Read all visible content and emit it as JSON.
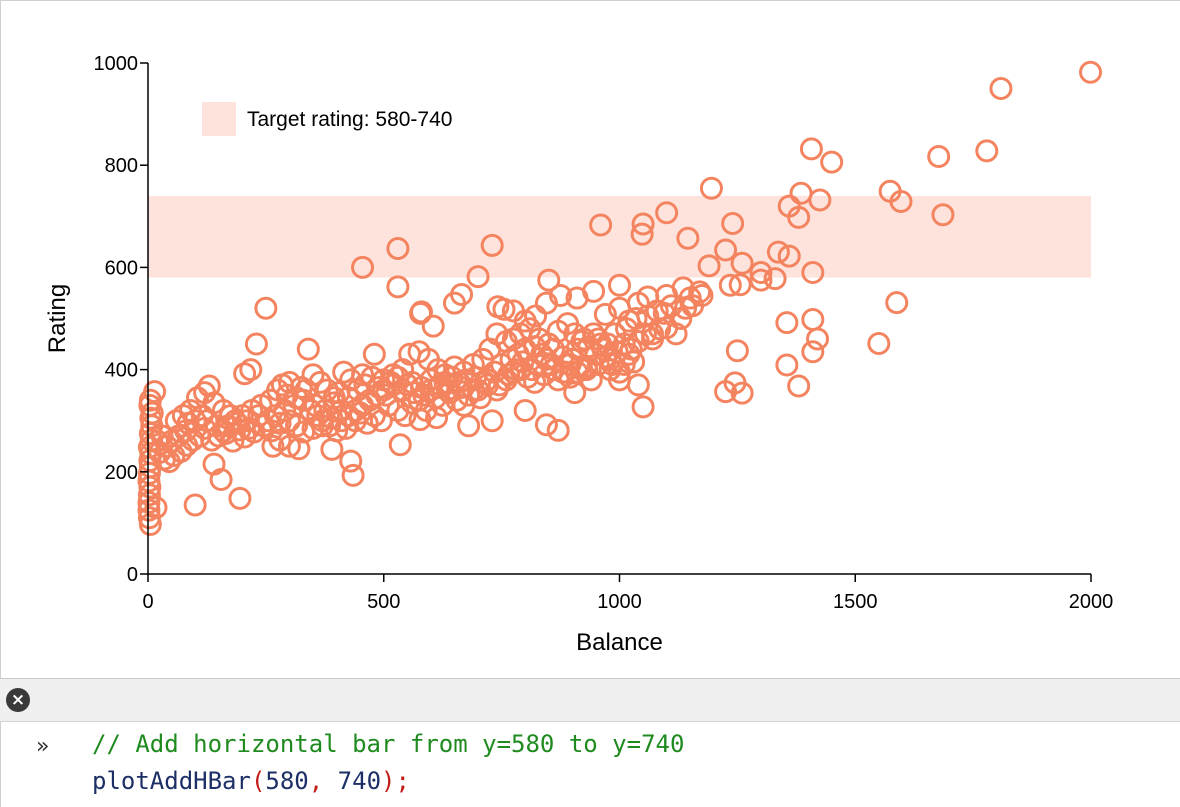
{
  "chart_data": {
    "type": "scatter",
    "xlabel": "Balance",
    "ylabel": "Rating",
    "xlim": [
      0,
      2000
    ],
    "ylim": [
      0,
      1000
    ],
    "xticks": [
      0,
      500,
      1000,
      1500,
      2000
    ],
    "yticks": [
      0,
      200,
      400,
      600,
      800,
      1000
    ],
    "grid": false,
    "marker_color": "#f4845f",
    "hbar": {
      "from": 580,
      "to": 740,
      "color": "#fde3dc",
      "legend": "Target rating: 580-740",
      "legend_position": "top-left"
    },
    "points": [
      [
        1999,
        982
      ],
      [
        1809,
        950
      ],
      [
        1779,
        828
      ],
      [
        1677,
        817
      ],
      [
        1686,
        703
      ],
      [
        1574,
        749
      ],
      [
        1597,
        729
      ],
      [
        1588,
        531
      ],
      [
        1550,
        451
      ],
      [
        1407,
        832
      ],
      [
        1450,
        806
      ],
      [
        1195,
        755
      ],
      [
        1385,
        745
      ],
      [
        1425,
        732
      ],
      [
        1360,
        720
      ],
      [
        1380,
        698
      ],
      [
        1240,
        686
      ],
      [
        1100,
        707
      ],
      [
        1050,
        685
      ],
      [
        1048,
        665
      ],
      [
        1145,
        657
      ],
      [
        960,
        683
      ],
      [
        730,
        643
      ],
      [
        530,
        637
      ],
      [
        455,
        600
      ],
      [
        530,
        562
      ],
      [
        1225,
        634
      ],
      [
        1337,
        630
      ],
      [
        1360,
        622
      ],
      [
        1190,
        603
      ],
      [
        1260,
        608
      ],
      [
        1300,
        590
      ],
      [
        1330,
        578
      ],
      [
        1410,
        590
      ],
      [
        1235,
        565
      ],
      [
        1256,
        566
      ],
      [
        1300,
        575
      ],
      [
        1170,
        552
      ],
      [
        1135,
        560
      ],
      [
        1100,
        545
      ],
      [
        1000,
        565
      ],
      [
        1060,
        542
      ],
      [
        1040,
        530
      ],
      [
        1080,
        515
      ],
      [
        1110,
        525
      ],
      [
        1150,
        540
      ],
      [
        1130,
        500
      ],
      [
        1100,
        482
      ],
      [
        1070,
        470
      ],
      [
        1020,
        495
      ],
      [
        1000,
        520
      ],
      [
        970,
        508
      ],
      [
        945,
        553
      ],
      [
        910,
        540
      ],
      [
        850,
        575
      ],
      [
        875,
        545
      ],
      [
        845,
        530
      ],
      [
        822,
        505
      ],
      [
        800,
        495
      ],
      [
        775,
        515
      ],
      [
        755,
        518
      ],
      [
        742,
        523
      ],
      [
        700,
        582
      ],
      [
        665,
        547
      ],
      [
        650,
        530
      ],
      [
        580,
        513
      ],
      [
        578,
        510
      ],
      [
        605,
        485
      ],
      [
        1355,
        492
      ],
      [
        1410,
        498
      ],
      [
        1420,
        460
      ],
      [
        1410,
        435
      ],
      [
        1250,
        437
      ],
      [
        1355,
        409
      ],
      [
        1380,
        368
      ],
      [
        1225,
        357
      ],
      [
        1245,
        374
      ],
      [
        1260,
        354
      ],
      [
        1030,
        415
      ],
      [
        1010,
        410
      ],
      [
        1000,
        380
      ],
      [
        1040,
        370
      ],
      [
        1050,
        327
      ],
      [
        940,
        380
      ],
      [
        920,
        400
      ],
      [
        905,
        355
      ],
      [
        870,
        281
      ],
      [
        845,
        292
      ],
      [
        800,
        320
      ],
      [
        730,
        300
      ],
      [
        680,
        290
      ],
      [
        612,
        306
      ],
      [
        577,
        302
      ],
      [
        535,
        253
      ],
      [
        435,
        193
      ],
      [
        430,
        221
      ],
      [
        390,
        244
      ],
      [
        320,
        245
      ],
      [
        300,
        250
      ],
      [
        280,
        262
      ],
      [
        265,
        250
      ],
      [
        250,
        520
      ],
      [
        230,
        450
      ],
      [
        218,
        400
      ],
      [
        205,
        392
      ],
      [
        195,
        148
      ],
      [
        155,
        185
      ],
      [
        140,
        215
      ],
      [
        100,
        135
      ],
      [
        17,
        130
      ],
      [
        5,
        97
      ],
      [
        3,
        110
      ],
      [
        2,
        125
      ],
      [
        2,
        140
      ],
      [
        3,
        155
      ],
      [
        4,
        170
      ],
      [
        2,
        182
      ],
      [
        3,
        197
      ],
      [
        5,
        210
      ],
      [
        4,
        222
      ],
      [
        6,
        236
      ],
      [
        3,
        248
      ],
      [
        7,
        262
      ],
      [
        5,
        275
      ],
      [
        8,
        290
      ],
      [
        6,
        305
      ],
      [
        4,
        330
      ],
      [
        14,
        357
      ],
      [
        5,
        340
      ],
      [
        9,
        315
      ],
      [
        25,
        238
      ],
      [
        35,
        225
      ],
      [
        45,
        220
      ],
      [
        55,
        232
      ],
      [
        70,
        240
      ],
      [
        82,
        252
      ],
      [
        95,
        262
      ],
      [
        110,
        270
      ],
      [
        120,
        285
      ],
      [
        135,
        262
      ],
      [
        150,
        270
      ],
      [
        165,
        275
      ],
      [
        180,
        260
      ],
      [
        195,
        282
      ],
      [
        205,
        268
      ],
      [
        215,
        285
      ],
      [
        225,
        278
      ],
      [
        245,
        290
      ],
      [
        262,
        280
      ],
      [
        280,
        295
      ],
      [
        300,
        300
      ],
      [
        315,
        290
      ],
      [
        330,
        278
      ],
      [
        350,
        285
      ],
      [
        370,
        290
      ],
      [
        390,
        305
      ],
      [
        410,
        320
      ],
      [
        420,
        285
      ],
      [
        440,
        300
      ],
      [
        450,
        315
      ],
      [
        465,
        295
      ],
      [
        480,
        310
      ],
      [
        495,
        300
      ],
      [
        510,
        330
      ],
      [
        530,
        320
      ],
      [
        545,
        310
      ],
      [
        560,
        335
      ],
      [
        575,
        340
      ],
      [
        590,
        320
      ],
      [
        610,
        345
      ],
      [
        625,
        330
      ],
      [
        640,
        355
      ],
      [
        655,
        340
      ],
      [
        670,
        330
      ],
      [
        690,
        360
      ],
      [
        705,
        345
      ],
      [
        720,
        370
      ],
      [
        740,
        360
      ],
      [
        760,
        380
      ],
      [
        775,
        395
      ],
      [
        790,
        400
      ],
      [
        805,
        385
      ],
      [
        820,
        375
      ],
      [
        840,
        390
      ],
      [
        855,
        410
      ],
      [
        870,
        380
      ],
      [
        885,
        395
      ],
      [
        900,
        420
      ],
      [
        915,
        405
      ],
      [
        930,
        400
      ],
      [
        950,
        430
      ],
      [
        965,
        440
      ],
      [
        980,
        420
      ],
      [
        995,
        435
      ],
      [
        1010,
        450
      ],
      [
        1025,
        440
      ],
      [
        1040,
        455
      ],
      [
        1055,
        470
      ],
      [
        1070,
        460
      ],
      [
        1085,
        480
      ],
      [
        60,
        300
      ],
      [
        75,
        310
      ],
      [
        90,
        320
      ],
      [
        105,
        345
      ],
      [
        120,
        355
      ],
      [
        130,
        368
      ],
      [
        140,
        335
      ],
      [
        160,
        320
      ],
      [
        175,
        310
      ],
      [
        190,
        295
      ],
      [
        210,
        300
      ],
      [
        240,
        330
      ],
      [
        260,
        340
      ],
      [
        285,
        370
      ],
      [
        300,
        375
      ],
      [
        325,
        365
      ],
      [
        340,
        440
      ],
      [
        350,
        390
      ],
      [
        365,
        375
      ],
      [
        380,
        360
      ],
      [
        395,
        345
      ],
      [
        415,
        395
      ],
      [
        430,
        380
      ],
      [
        455,
        390
      ],
      [
        480,
        430
      ],
      [
        500,
        380
      ],
      [
        520,
        390
      ],
      [
        540,
        400
      ],
      [
        555,
        430
      ],
      [
        575,
        435
      ],
      [
        595,
        420
      ],
      [
        615,
        400
      ],
      [
        630,
        390
      ],
      [
        650,
        405
      ],
      [
        670,
        395
      ],
      [
        690,
        410
      ],
      [
        710,
        420
      ],
      [
        725,
        440
      ],
      [
        740,
        470
      ],
      [
        760,
        455
      ],
      [
        775,
        460
      ],
      [
        790,
        470
      ],
      [
        810,
        480
      ],
      [
        830,
        460
      ],
      [
        850,
        450
      ],
      [
        870,
        475
      ],
      [
        890,
        490
      ],
      [
        905,
        470
      ],
      [
        920,
        455
      ],
      [
        935,
        445
      ],
      [
        955,
        460
      ],
      [
        975,
        450
      ],
      [
        990,
        470
      ],
      [
        1015,
        480
      ],
      [
        1035,
        500
      ],
      [
        1060,
        505
      ],
      [
        1095,
        510
      ],
      [
        1120,
        470
      ],
      [
        1140,
        520
      ],
      [
        1155,
        525
      ],
      [
        1175,
        545
      ],
      [
        275,
        360
      ],
      [
        295,
        350
      ],
      [
        315,
        345
      ],
      [
        335,
        360
      ],
      [
        355,
        330
      ],
      [
        375,
        320
      ],
      [
        395,
        335
      ],
      [
        405,
        355
      ],
      [
        425,
        345
      ],
      [
        445,
        360
      ],
      [
        460,
        370
      ],
      [
        475,
        385
      ],
      [
        490,
        365
      ],
      [
        505,
        350
      ],
      [
        520,
        370
      ],
      [
        540,
        360
      ],
      [
        560,
        375
      ],
      [
        580,
        365
      ],
      [
        600,
        380
      ],
      [
        620,
        370
      ],
      [
        635,
        360
      ],
      [
        660,
        375
      ],
      [
        675,
        380
      ],
      [
        695,
        385
      ],
      [
        715,
        375
      ],
      [
        735,
        395
      ],
      [
        750,
        410
      ],
      [
        770,
        420
      ],
      [
        785,
        430
      ],
      [
        800,
        440
      ],
      [
        820,
        445
      ],
      [
        835,
        430
      ],
      [
        860,
        440
      ],
      [
        880,
        425
      ],
      [
        895,
        410
      ],
      [
        910,
        440
      ],
      [
        925,
        460
      ],
      [
        945,
        470
      ],
      [
        960,
        450
      ],
      [
        980,
        400
      ],
      [
        1000,
        395
      ],
      [
        1020,
        430
      ],
      [
        20,
        260
      ],
      [
        30,
        270
      ],
      [
        40,
        250
      ],
      [
        50,
        260
      ],
      [
        65,
        270
      ],
      [
        80,
        280
      ],
      [
        85,
        295
      ],
      [
        100,
        300
      ],
      [
        115,
        310
      ],
      [
        125,
        300
      ],
      [
        145,
        290
      ],
      [
        160,
        280
      ],
      [
        170,
        290
      ],
      [
        185,
        300
      ],
      [
        200,
        310
      ],
      [
        220,
        320
      ],
      [
        235,
        310
      ],
      [
        255,
        300
      ],
      [
        270,
        310
      ],
      [
        290,
        320
      ],
      [
        310,
        330
      ],
      [
        330,
        340
      ],
      [
        345,
        320
      ],
      [
        360,
        310
      ],
      [
        370,
        300
      ],
      [
        385,
        290
      ],
      [
        400,
        280
      ],
      [
        410,
        300
      ],
      [
        425,
        310
      ],
      [
        440,
        320
      ],
      [
        455,
        330
      ],
      [
        470,
        340
      ],
      [
        485,
        350
      ],
      [
        500,
        360
      ],
      [
        515,
        375
      ],
      [
        530,
        385
      ],
      [
        550,
        370
      ],
      [
        565,
        355
      ],
      [
        585,
        350
      ],
      [
        600,
        360
      ],
      [
        615,
        365
      ],
      [
        630,
        375
      ],
      [
        645,
        385
      ],
      [
        665,
        365
      ],
      [
        680,
        350
      ],
      [
        700,
        360
      ],
      [
        720,
        380
      ],
      [
        745,
        370
      ],
      [
        765,
        390
      ],
      [
        780,
        400
      ],
      [
        795,
        415
      ],
      [
        815,
        400
      ],
      [
        825,
        410
      ],
      [
        845,
        420
      ],
      [
        860,
        400
      ],
      [
        880,
        395
      ],
      [
        895,
        385
      ],
      [
        910,
        395
      ],
      [
        930,
        405
      ],
      [
        955,
        410
      ],
      [
        970,
        425
      ],
      [
        985,
        410
      ]
    ]
  },
  "toolbar": {
    "close_glyph": "×"
  },
  "console": {
    "prompt": "»",
    "comment": "// Add horizontal bar from y=580 to y=740",
    "fn": "plotAddHBar",
    "open": "(",
    "arg1": "580",
    "sep": ", ",
    "arg2": "740",
    "close": ");"
  }
}
